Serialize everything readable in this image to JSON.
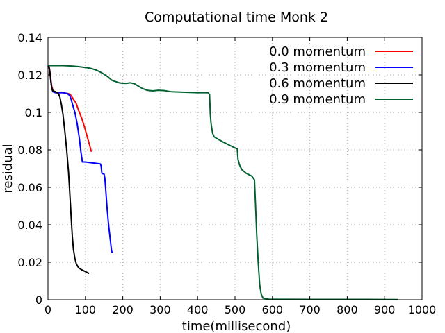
{
  "chart_data": {
    "type": "line",
    "title": "Computational time Monk 2",
    "xlabel": "time(millisecond)",
    "ylabel": "residual",
    "xlim": [
      0,
      1000
    ],
    "ylim": [
      0,
      0.14
    ],
    "xticks": [
      0,
      100,
      200,
      300,
      400,
      500,
      600,
      700,
      800,
      900,
      1000
    ],
    "yticks": [
      0,
      0.02,
      0.04,
      0.06,
      0.08,
      0.1,
      0.12,
      0.14
    ],
    "xtick_labels": [
      "0",
      "100",
      "200",
      "300",
      "400",
      "500",
      "600",
      "700",
      "800",
      "900",
      "1000"
    ],
    "ytick_labels": [
      "0",
      "0.02",
      "0.04",
      "0.06",
      "0.08",
      "0.1",
      "0.12",
      "0.14"
    ],
    "grid": true,
    "legend_position": "top-right",
    "series": [
      {
        "name": "0.0 momentum",
        "color": "#ff0000",
        "points": [
          [
            0,
            0.125
          ],
          [
            3,
            0.1245
          ],
          [
            6,
            0.121
          ],
          [
            8,
            0.117
          ],
          [
            10,
            0.114
          ],
          [
            13,
            0.112
          ],
          [
            16,
            0.111
          ],
          [
            25,
            0.1105
          ],
          [
            40,
            0.1105
          ],
          [
            55,
            0.11
          ],
          [
            62,
            0.109
          ],
          [
            68,
            0.107
          ],
          [
            75,
            0.105
          ],
          [
            82,
            0.101
          ],
          [
            90,
            0.097
          ],
          [
            98,
            0.092
          ],
          [
            105,
            0.087
          ],
          [
            112,
            0.082
          ],
          [
            116,
            0.079
          ]
        ]
      },
      {
        "name": "0.3 momentum",
        "color": "#0000ff",
        "points": [
          [
            0,
            0.125
          ],
          [
            3,
            0.124
          ],
          [
            6,
            0.12
          ],
          [
            8,
            0.116
          ],
          [
            10,
            0.113
          ],
          [
            13,
            0.111
          ],
          [
            20,
            0.1105
          ],
          [
            40,
            0.1105
          ],
          [
            52,
            0.11
          ],
          [
            58,
            0.109
          ],
          [
            62,
            0.107
          ],
          [
            66,
            0.104
          ],
          [
            72,
            0.1
          ],
          [
            78,
            0.094
          ],
          [
            84,
            0.086
          ],
          [
            88,
            0.079
          ],
          [
            92,
            0.0735
          ],
          [
            100,
            0.0735
          ],
          [
            120,
            0.073
          ],
          [
            140,
            0.0725
          ],
          [
            142,
            0.0715
          ],
          [
            144,
            0.0675
          ],
          [
            150,
            0.067
          ],
          [
            152,
            0.065
          ],
          [
            155,
            0.057
          ],
          [
            158,
            0.049
          ],
          [
            162,
            0.04
          ],
          [
            166,
            0.033
          ],
          [
            170,
            0.026
          ],
          [
            172,
            0.025
          ]
        ]
      },
      {
        "name": "0.6 momentum",
        "color": "#000000",
        "points": [
          [
            0,
            0.125
          ],
          [
            3,
            0.124
          ],
          [
            6,
            0.12
          ],
          [
            8,
            0.116
          ],
          [
            10,
            0.113
          ],
          [
            13,
            0.1115
          ],
          [
            20,
            0.111
          ],
          [
            28,
            0.11
          ],
          [
            32,
            0.108
          ],
          [
            36,
            0.104
          ],
          [
            40,
            0.099
          ],
          [
            45,
            0.09
          ],
          [
            50,
            0.08
          ],
          [
            55,
            0.068
          ],
          [
            58,
            0.058
          ],
          [
            62,
            0.044
          ],
          [
            65,
            0.034
          ],
          [
            68,
            0.027
          ],
          [
            72,
            0.022
          ],
          [
            76,
            0.019
          ],
          [
            82,
            0.017
          ],
          [
            90,
            0.016
          ],
          [
            100,
            0.015
          ],
          [
            110,
            0.014
          ]
        ]
      },
      {
        "name": "0.9 momentum",
        "color": "#006030",
        "points": [
          [
            0,
            0.125
          ],
          [
            20,
            0.125
          ],
          [
            40,
            0.125
          ],
          [
            60,
            0.1248
          ],
          [
            80,
            0.1245
          ],
          [
            100,
            0.124
          ],
          [
            115,
            0.1235
          ],
          [
            130,
            0.1225
          ],
          [
            145,
            0.121
          ],
          [
            160,
            0.119
          ],
          [
            172,
            0.117
          ],
          [
            180,
            0.1165
          ],
          [
            190,
            0.1158
          ],
          [
            200,
            0.1155
          ],
          [
            210,
            0.1155
          ],
          [
            220,
            0.1158
          ],
          [
            232,
            0.1152
          ],
          [
            240,
            0.1142
          ],
          [
            252,
            0.1128
          ],
          [
            265,
            0.1118
          ],
          [
            280,
            0.1115
          ],
          [
            295,
            0.1118
          ],
          [
            312,
            0.1116
          ],
          [
            330,
            0.111
          ],
          [
            360,
            0.1108
          ],
          [
            400,
            0.1105
          ],
          [
            428,
            0.1105
          ],
          [
            432,
            0.1095
          ],
          [
            434,
            0.099
          ],
          [
            436,
            0.094
          ],
          [
            440,
            0.089
          ],
          [
            444,
            0.087
          ],
          [
            452,
            0.086
          ],
          [
            470,
            0.084
          ],
          [
            490,
            0.082
          ],
          [
            506,
            0.0805
          ],
          [
            508,
            0.075
          ],
          [
            512,
            0.072
          ],
          [
            518,
            0.0695
          ],
          [
            530,
            0.0675
          ],
          [
            545,
            0.066
          ],
          [
            552,
            0.064
          ],
          [
            555,
            0.05
          ],
          [
            558,
            0.035
          ],
          [
            562,
            0.02
          ],
          [
            566,
            0.008
          ],
          [
            570,
            0.003
          ],
          [
            575,
            0.0008
          ],
          [
            590,
            0.0003
          ],
          [
            700,
            0.0002
          ],
          [
            850,
            0.0002
          ],
          [
            935,
            0.0001
          ]
        ]
      }
    ]
  }
}
